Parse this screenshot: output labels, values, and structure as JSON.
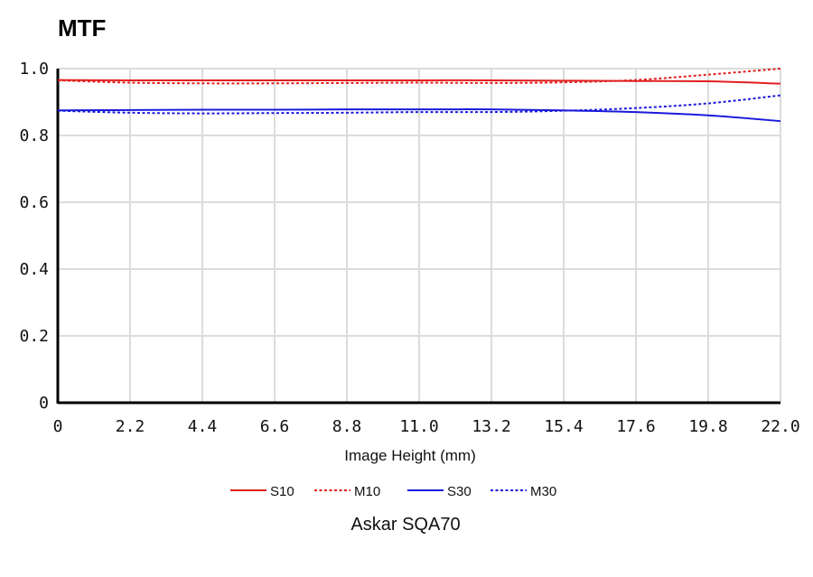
{
  "chart_data": {
    "type": "line",
    "title": "MTF",
    "xlabel": "Image Height (mm)",
    "ylabel": "",
    "caption": "Askar SQA70",
    "xlim": [
      0,
      22
    ],
    "ylim": [
      0,
      1.0
    ],
    "x_ticks": [
      "0",
      "2.2",
      "4.4",
      "6.6",
      "8.8",
      "11.0",
      "13.2",
      "15.4",
      "17.6",
      "19.8",
      "22.0"
    ],
    "y_ticks": [
      "0",
      "0.2",
      "0.4",
      "0.6",
      "0.8",
      "1.0"
    ],
    "grid": true,
    "legend_position": "bottom",
    "x": [
      0,
      2.2,
      4.4,
      6.6,
      8.8,
      11.0,
      13.2,
      15.4,
      17.6,
      19.8,
      22.0
    ],
    "series": [
      {
        "name": "S10",
        "color": "#e02020",
        "dash": "solid",
        "values": [
          0.966,
          0.965,
          0.965,
          0.965,
          0.965,
          0.965,
          0.965,
          0.964,
          0.963,
          0.962,
          0.955
        ]
      },
      {
        "name": "M10",
        "color": "#e02020",
        "dash": "dotted",
        "values": [
          0.965,
          0.958,
          0.956,
          0.956,
          0.957,
          0.958,
          0.957,
          0.959,
          0.966,
          0.982,
          1.0
        ]
      },
      {
        "name": "S30",
        "color": "#1a1adc",
        "dash": "solid",
        "values": [
          0.875,
          0.876,
          0.877,
          0.877,
          0.878,
          0.878,
          0.878,
          0.875,
          0.87,
          0.86,
          0.843
        ]
      },
      {
        "name": "M30",
        "color": "#1a1adc",
        "dash": "dotted",
        "values": [
          0.874,
          0.868,
          0.866,
          0.867,
          0.868,
          0.87,
          0.87,
          0.874,
          0.882,
          0.896,
          0.92
        ]
      }
    ]
  }
}
